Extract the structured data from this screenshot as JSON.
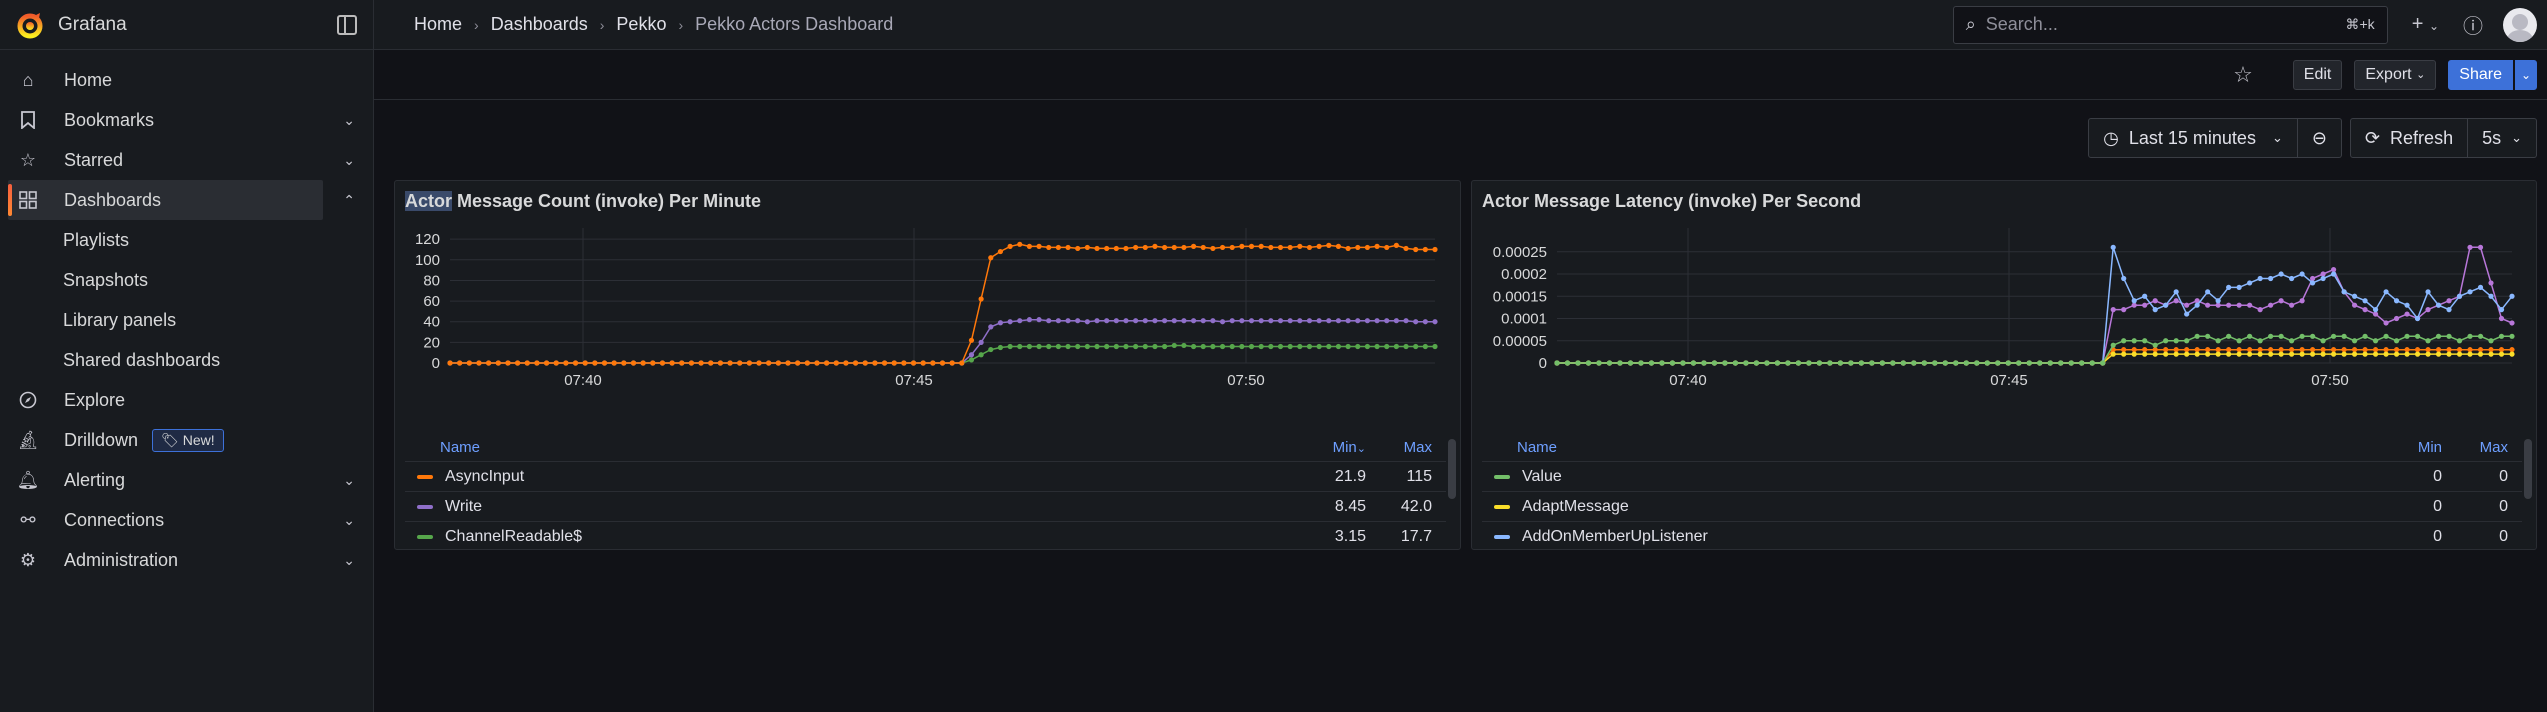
{
  "app": {
    "brand": "Grafana"
  },
  "sidebar": {
    "items": [
      {
        "label": "Home",
        "icon": "home-icon"
      },
      {
        "label": "Bookmarks",
        "icon": "bookmark-icon",
        "chevron": "down"
      },
      {
        "label": "Starred",
        "icon": "star-icon",
        "chevron": "down"
      },
      {
        "label": "Dashboards",
        "icon": "apps-icon",
        "chevron": "up",
        "active": true
      },
      {
        "label": "Explore",
        "icon": "compass-icon"
      },
      {
        "label": "Drilldown",
        "icon": "microscope-icon",
        "badge": "New!"
      },
      {
        "label": "Alerting",
        "icon": "bell-icon",
        "chevron": "down"
      },
      {
        "label": "Connections",
        "icon": "link-icon",
        "chevron": "down"
      },
      {
        "label": "Administration",
        "icon": "gear-icon",
        "chevron": "down"
      }
    ],
    "dashboards_sub": [
      "Playlists",
      "Snapshots",
      "Library panels",
      "Shared dashboards"
    ]
  },
  "breadcrumb": [
    "Home",
    "Dashboards",
    "Pekko",
    "Pekko Actors Dashboard"
  ],
  "search": {
    "placeholder": "Search...",
    "shortcut": "⌘+k"
  },
  "toolbar": {
    "edit": "Edit",
    "export": "Export",
    "share": "Share"
  },
  "time": {
    "range": "Last 15 minutes",
    "refresh": "Refresh",
    "interval": "5s"
  },
  "panels": [
    {
      "title_hl": "Actor",
      "title_rest": " Message Count (invoke) Per Minute",
      "legend_headers": {
        "name": "Name",
        "min": "Min",
        "max": "Max"
      },
      "legend": [
        {
          "name": "AsyncInput",
          "color": "#ff780a",
          "min": "21.9",
          "max": "115"
        },
        {
          "name": "Write",
          "color": "#8f6fc9",
          "min": "8.45",
          "max": "42.0"
        },
        {
          "name": "ChannelReadable$",
          "color": "#56a64b",
          "min": "3.15",
          "max": "17.7"
        }
      ]
    },
    {
      "title": "Actor Message Latency (invoke) Per Second",
      "legend_headers": {
        "name": "Name",
        "min": "Min",
        "max": "Max"
      },
      "legend": [
        {
          "name": "Value",
          "color": "#73bf69",
          "min": "0",
          "max": "0"
        },
        {
          "name": "AdaptMessage",
          "color": "#fade2a",
          "min": "0",
          "max": "0"
        },
        {
          "name": "AddOnMemberUpListener",
          "color": "#8ab8ff",
          "min": "0",
          "max": "0"
        }
      ]
    }
  ],
  "chart_data": [
    {
      "type": "line",
      "title": "Actor Message Count (invoke) Per Minute",
      "x_ticks": [
        "07:40",
        "07:45",
        "07:50"
      ],
      "y_ticks": [
        0,
        20,
        40,
        60,
        80,
        100,
        120
      ],
      "ylim": [
        0,
        125
      ],
      "series": [
        {
          "name": "AsyncInput",
          "color": "#ff780a",
          "values": [
            0,
            0,
            0,
            0,
            0,
            0,
            0,
            0,
            0,
            0,
            0,
            0,
            0,
            0,
            0,
            0,
            0,
            0,
            0,
            0,
            0,
            0,
            0,
            0,
            0,
            0,
            0,
            0,
            0,
            0,
            0,
            0,
            0,
            0,
            0,
            0,
            0,
            0,
            0,
            0,
            0,
            0,
            0,
            0,
            0,
            0,
            0,
            0,
            0,
            0,
            0,
            0,
            0,
            0,
            22,
            62,
            102,
            108,
            113,
            115,
            113,
            113,
            112,
            112,
            112,
            111,
            112,
            111,
            111,
            111,
            111,
            112,
            112,
            113,
            112,
            112,
            112,
            113,
            112,
            111,
            112,
            112,
            113,
            113,
            113,
            112,
            112,
            112,
            113,
            112,
            113,
            114,
            113,
            111,
            112,
            112,
            113,
            112,
            114,
            111,
            110,
            110,
            110
          ]
        },
        {
          "name": "Write",
          "color": "#8f6fc9",
          "values": [
            0,
            0,
            0,
            0,
            0,
            0,
            0,
            0,
            0,
            0,
            0,
            0,
            0,
            0,
            0,
            0,
            0,
            0,
            0,
            0,
            0,
            0,
            0,
            0,
            0,
            0,
            0,
            0,
            0,
            0,
            0,
            0,
            0,
            0,
            0,
            0,
            0,
            0,
            0,
            0,
            0,
            0,
            0,
            0,
            0,
            0,
            0,
            0,
            0,
            0,
            0,
            0,
            0,
            0,
            8,
            20,
            35,
            39,
            40,
            41,
            42,
            42,
            41,
            41,
            41,
            41,
            40,
            41,
            41,
            41,
            41,
            41,
            41,
            41,
            41,
            41,
            41,
            41,
            41,
            41,
            40,
            41,
            41,
            41,
            41,
            41,
            41,
            41,
            41,
            41,
            41,
            41,
            41,
            41,
            41,
            41,
            41,
            41,
            41,
            41,
            40,
            40,
            40
          ]
        },
        {
          "name": "ChannelReadable$",
          "color": "#56a64b",
          "values": [
            0,
            0,
            0,
            0,
            0,
            0,
            0,
            0,
            0,
            0,
            0,
            0,
            0,
            0,
            0,
            0,
            0,
            0,
            0,
            0,
            0,
            0,
            0,
            0,
            0,
            0,
            0,
            0,
            0,
            0,
            0,
            0,
            0,
            0,
            0,
            0,
            0,
            0,
            0,
            0,
            0,
            0,
            0,
            0,
            0,
            0,
            0,
            0,
            0,
            0,
            0,
            0,
            0,
            0,
            3,
            8,
            13,
            15,
            16,
            16,
            16,
            16,
            16,
            16,
            16,
            16,
            16,
            16,
            16,
            16,
            16,
            16,
            16,
            16,
            16,
            17,
            17,
            16,
            16,
            16,
            16,
            16,
            16,
            16,
            16,
            16,
            16,
            16,
            16,
            16,
            16,
            16,
            16,
            16,
            16,
            16,
            16,
            16,
            16,
            16,
            16,
            16,
            16
          ]
        }
      ]
    },
    {
      "type": "line",
      "title": "Actor Message Latency (invoke) Per Second",
      "x_ticks": [
        "07:40",
        "07:45",
        "07:50"
      ],
      "y_ticks": [
        "0",
        "0.00005",
        "0.0001",
        "0.00015",
        "0.0002",
        "0.00025"
      ],
      "ylim": [
        0,
        0.00029
      ],
      "series": [
        {
          "name": "Value",
          "color": "#73bf69",
          "values": [
            0,
            0,
            0,
            0,
            0,
            0,
            0,
            0,
            0,
            0,
            0,
            0,
            0,
            0,
            0,
            0,
            0,
            0,
            0,
            0,
            0,
            0,
            0,
            0,
            0,
            0,
            0,
            0,
            0,
            0,
            0,
            0,
            0,
            0,
            0,
            0,
            0,
            0,
            0,
            0,
            0,
            0,
            0,
            0,
            0,
            0,
            0,
            0,
            0,
            0,
            0,
            0,
            0,
            4e-05,
            5e-05,
            5e-05,
            5e-05,
            4e-05,
            5e-05,
            5e-05,
            5e-05,
            6e-05,
            6e-05,
            5e-05,
            6e-05,
            5e-05,
            6e-05,
            5e-05,
            6e-05,
            6e-05,
            5e-05,
            6e-05,
            6e-05,
            5e-05,
            6e-05,
            6e-05,
            5e-05,
            6e-05,
            5e-05,
            6e-05,
            5e-05,
            6e-05,
            6e-05,
            5e-05,
            6e-05,
            6e-05,
            5e-05,
            6e-05,
            6e-05,
            5e-05,
            6e-05,
            6e-05
          ]
        },
        {
          "name": "AdaptMessage",
          "color": "#fade2a",
          "values": [
            0,
            0,
            0,
            0,
            0,
            0,
            0,
            0,
            0,
            0,
            0,
            0,
            0,
            0,
            0,
            0,
            0,
            0,
            0,
            0,
            0,
            0,
            0,
            0,
            0,
            0,
            0,
            0,
            0,
            0,
            0,
            0,
            0,
            0,
            0,
            0,
            0,
            0,
            0,
            0,
            0,
            0,
            0,
            0,
            0,
            0,
            0,
            0,
            0,
            0,
            0,
            0,
            0,
            2e-05,
            2e-05,
            2e-05,
            2e-05,
            2e-05,
            2e-05,
            2e-05,
            2e-05,
            2e-05,
            2e-05,
            2e-05,
            2e-05,
            2e-05,
            2e-05,
            2e-05,
            2e-05,
            2e-05,
            2e-05,
            2e-05,
            2e-05,
            2e-05,
            2e-05,
            2e-05,
            2e-05,
            2e-05,
            2e-05,
            2e-05,
            2e-05,
            2e-05,
            2e-05,
            2e-05,
            2e-05,
            2e-05,
            2e-05,
            2e-05,
            2e-05,
            2e-05,
            2e-05,
            2e-05
          ]
        },
        {
          "name": "AddOnMemberUpListener",
          "color": "#8ab8ff",
          "values": [
            0,
            0,
            0,
            0,
            0,
            0,
            0,
            0,
            0,
            0,
            0,
            0,
            0,
            0,
            0,
            0,
            0,
            0,
            0,
            0,
            0,
            0,
            0,
            0,
            0,
            0,
            0,
            0,
            0,
            0,
            0,
            0,
            0,
            0,
            0,
            0,
            0,
            0,
            0,
            0,
            0,
            0,
            0,
            0,
            0,
            0,
            0,
            0,
            0,
            0,
            0,
            0,
            0,
            0.00026,
            0.00019,
            0.00014,
            0.00015,
            0.00012,
            0.00013,
            0.00016,
            0.00011,
            0.00013,
            0.00016,
            0.00014,
            0.00017,
            0.00017,
            0.00018,
            0.00019,
            0.00019,
            0.0002,
            0.00019,
            0.0002,
            0.00018,
            0.00019,
            0.0002,
            0.00016,
            0.00015,
            0.00014,
            0.00012,
            0.00016,
            0.00014,
            0.00013,
            0.0001,
            0.00016,
            0.00013,
            0.00012,
            0.00015,
            0.00016,
            0.00017,
            0.00015,
            0.00012,
            0.00015
          ]
        },
        {
          "color": "#b877d9",
          "values": [
            0,
            0,
            0,
            0,
            0,
            0,
            0,
            0,
            0,
            0,
            0,
            0,
            0,
            0,
            0,
            0,
            0,
            0,
            0,
            0,
            0,
            0,
            0,
            0,
            0,
            0,
            0,
            0,
            0,
            0,
            0,
            0,
            0,
            0,
            0,
            0,
            0,
            0,
            0,
            0,
            0,
            0,
            0,
            0,
            0,
            0,
            0,
            0,
            0,
            0,
            0,
            0,
            0,
            0.00012,
            0.00012,
            0.00013,
            0.00013,
            0.00014,
            0.00013,
            0.00014,
            0.00013,
            0.00014,
            0.00013,
            0.00013,
            0.00013,
            0.00013,
            0.00013,
            0.00012,
            0.00013,
            0.00014,
            0.00013,
            0.00014,
            0.00019,
            0.0002,
            0.00021,
            0.00016,
            0.00013,
            0.00012,
            0.00011,
            9e-05,
            0.0001,
            0.00011,
            0.0001,
            0.00012,
            0.00013,
            0.00014,
            0.00015,
            0.00026,
            0.00026,
            0.00018,
            0.0001,
            9e-05
          ]
        },
        {
          "color": "#ff780a",
          "values": [
            0,
            0,
            0,
            0,
            0,
            0,
            0,
            0,
            0,
            0,
            0,
            0,
            0,
            0,
            0,
            0,
            0,
            0,
            0,
            0,
            0,
            0,
            0,
            0,
            0,
            0,
            0,
            0,
            0,
            0,
            0,
            0,
            0,
            0,
            0,
            0,
            0,
            0,
            0,
            0,
            0,
            0,
            0,
            0,
            0,
            0,
            0,
            0,
            0,
            0,
            0,
            0,
            0,
            3e-05,
            3e-05,
            3e-05,
            3e-05,
            3e-05,
            3e-05,
            3e-05,
            3e-05,
            3e-05,
            3e-05,
            3e-05,
            3e-05,
            3e-05,
            3e-05,
            3e-05,
            3e-05,
            3e-05,
            3e-05,
            3e-05,
            3e-05,
            3e-05,
            3e-05,
            3e-05,
            3e-05,
            3e-05,
            3e-05,
            3e-05,
            3e-05,
            3e-05,
            3e-05,
            3e-05,
            3e-05,
            3e-05,
            3e-05,
            3e-05,
            3e-05,
            3e-05,
            3e-05,
            3e-05
          ]
        }
      ]
    }
  ]
}
